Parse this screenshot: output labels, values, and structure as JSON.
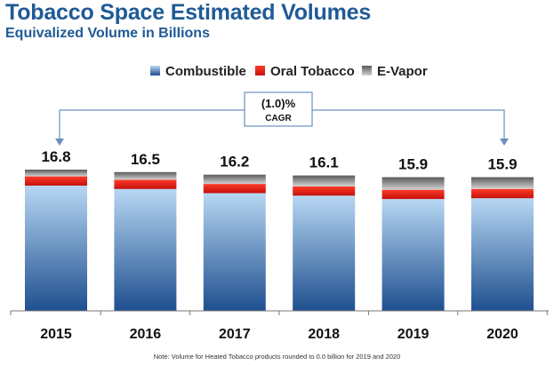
{
  "title": "Tobacco Space Estimated Volumes",
  "subtitle": "Equivalized Volume in Billions",
  "note": "Note: Volume for Heated Tobacco products rounded to 0.0 billion for 2019 and 2020",
  "annotation": {
    "value": "(1.0)%",
    "label": "CAGR"
  },
  "colors": {
    "combustible_top": "#b7d7f3",
    "combustible_bottom": "#1f4f8f",
    "oral_top": "#ff3a28",
    "oral_bottom": "#c4120c",
    "evapor_top": "#5a5a5a",
    "evapor_bottom": "#d2d2d2",
    "arrow": "#6a8fbf"
  },
  "chart_data": {
    "type": "bar",
    "stacked": true,
    "categories": [
      "2015",
      "2016",
      "2017",
      "2018",
      "2019",
      "2020"
    ],
    "totals": [
      "16.8",
      "16.5",
      "16.2",
      "16.1",
      "15.9",
      "15.9"
    ],
    "series": [
      {
        "name": "Combustible",
        "values": [
          14.9,
          14.5,
          14.0,
          13.7,
          13.3,
          13.4
        ]
      },
      {
        "name": "Oral Tobacco",
        "values": [
          1.1,
          1.1,
          1.1,
          1.1,
          1.1,
          1.1
        ]
      },
      {
        "name": "E-Vapor",
        "values": [
          0.8,
          0.9,
          1.1,
          1.3,
          1.5,
          1.4
        ]
      }
    ],
    "ylim": [
      0,
      16.8
    ],
    "legend_position": "top",
    "grid": false
  }
}
